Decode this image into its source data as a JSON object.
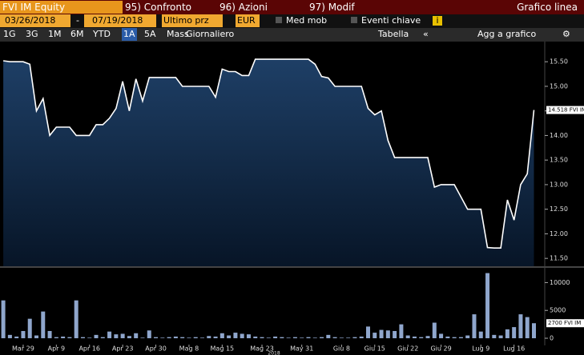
{
  "toolbar": {
    "security": "FVI IM Equity",
    "menu": [
      {
        "key": "95)",
        "label": "Confronto"
      },
      {
        "key": "96)",
        "label": "Azioni"
      },
      {
        "key": "97)",
        "label": "Modif"
      }
    ],
    "view": "Grafico linea",
    "start_date": "03/26/2018",
    "separator": "-",
    "end_date": "07/19/2018",
    "field": "Ultimo prz",
    "currency": "EUR",
    "moving_avg": "Med mob",
    "events": "Eventi chiave",
    "ranges": [
      "1G",
      "3G",
      "1M",
      "6M",
      "YTD",
      "1A",
      "5A",
      "Mass"
    ],
    "selected_range": "1A",
    "frequency": "Giornaliero",
    "table": "Tabella",
    "add": "Agg a grafico"
  },
  "chart_data": [
    {
      "type": "area",
      "color": "#ffffff",
      "last_label": "14.518 FVI IM",
      "ylim": [
        11.34,
        15.91
      ],
      "yticks": [
        {
          "value": 11.5,
          "label": "11.50"
        },
        {
          "value": 12,
          "label": "12.00"
        },
        {
          "value": 12.5,
          "label": "12.50"
        },
        {
          "value": 13,
          "label": "13.00"
        },
        {
          "value": 13.5,
          "label": "13.50"
        },
        {
          "value": 14,
          "label": "14.00"
        },
        {
          "value": 14.5,
          "label": "14.50"
        },
        {
          "value": 15,
          "label": "15.00"
        },
        {
          "value": 15.5,
          "label": "15.50"
        }
      ],
      "values": [
        15.52,
        15.5,
        15.5,
        15.5,
        15.45,
        14.5,
        14.75,
        14.0,
        14.17,
        14.17,
        14.17,
        14.0,
        14.0,
        14.0,
        14.22,
        14.22,
        14.35,
        14.55,
        15.1,
        14.5,
        15.15,
        14.7,
        15.18,
        15.18,
        15.18,
        15.18,
        15.18,
        15.0,
        15.0,
        15.0,
        15.0,
        15.0,
        14.78,
        15.35,
        15.3,
        15.3,
        15.22,
        15.22,
        15.55,
        15.55,
        15.55,
        15.55,
        15.55,
        15.55,
        15.55,
        15.55,
        15.55,
        15.45,
        15.2,
        15.17,
        15.0,
        15.0,
        15.0,
        15.0,
        15.0,
        14.55,
        14.42,
        14.5,
        13.9,
        13.55,
        13.55,
        13.55,
        13.55,
        13.55,
        13.55,
        12.95,
        13.0,
        13.0,
        13.0,
        12.75,
        12.5,
        12.5,
        12.5,
        11.72,
        11.71,
        11.71,
        12.69,
        12.28,
        13.0,
        13.22,
        14.518
      ]
    },
    {
      "type": "bar",
      "color": "#8fa6cc",
      "last_label": "2700 FVI IM",
      "xlabel": "2018",
      "ylim": [
        -1000,
        12500
      ],
      "yticks": [
        0,
        5000,
        10000
      ],
      "categories": [
        null,
        null,
        null,
        "Mar 29",
        null,
        null,
        null,
        null,
        "Apr 9",
        null,
        null,
        null,
        null,
        "Apr 16",
        null,
        null,
        null,
        null,
        "Apr 23",
        null,
        null,
        null,
        null,
        "Apr 30",
        null,
        null,
        null,
        null,
        "Mag 8",
        null,
        null,
        null,
        null,
        "Mag 15",
        null,
        null,
        null,
        null,
        null,
        "Mag 23",
        null,
        null,
        null,
        null,
        null,
        "May 31",
        null,
        null,
        null,
        null,
        null,
        "Giu 8",
        null,
        null,
        null,
        null,
        "Giu 15",
        null,
        null,
        null,
        null,
        "Giu 22",
        null,
        null,
        null,
        null,
        "Giu 29",
        null,
        null,
        null,
        null,
        null,
        "Lug 9",
        null,
        null,
        null,
        null,
        "Lug 16",
        null,
        null,
        null
      ],
      "values": [
        6800,
        600,
        300,
        1300,
        3500,
        500,
        4800,
        1300,
        200,
        300,
        200,
        6800,
        200,
        100,
        600,
        200,
        1200,
        700,
        800,
        400,
        900,
        100,
        1400,
        200,
        100,
        200,
        300,
        200,
        100,
        200,
        100,
        400,
        300,
        900,
        500,
        1000,
        800,
        700,
        300,
        200,
        100,
        300,
        200,
        100,
        200,
        100,
        200,
        100,
        200,
        600,
        200,
        100,
        100,
        200,
        300,
        2100,
        1000,
        1500,
        1400,
        1300,
        2500,
        500,
        300,
        200,
        400,
        2800,
        800,
        300,
        200,
        200,
        500,
        4300,
        1200,
        11700,
        600,
        500,
        1600,
        2000,
        4300,
        3800,
        2700
      ]
    }
  ]
}
